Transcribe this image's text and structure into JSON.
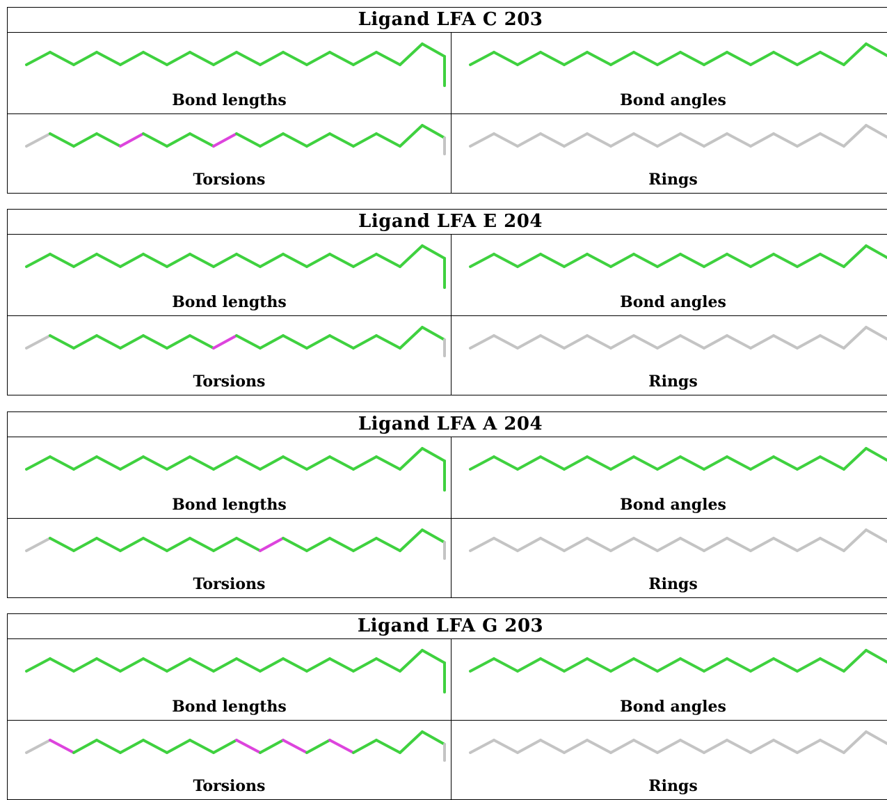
{
  "colors": {
    "green": "#3fd13f",
    "magenta": "#dd44dd",
    "gray": "#c4c4c4"
  },
  "panels": [
    {
      "title": "Ligand LFA C 203",
      "cells": [
        {
          "label": "Bond lengths",
          "highlight_bonds": []
        },
        {
          "label": "Bond angles",
          "highlight_bonds": []
        },
        {
          "label": "Torsions",
          "highlight_bonds": [
            4,
            8
          ]
        },
        {
          "label": "Rings",
          "highlight_bonds": []
        }
      ]
    },
    {
      "title": "Ligand LFA E 204",
      "cells": [
        {
          "label": "Bond lengths",
          "highlight_bonds": []
        },
        {
          "label": "Bond angles",
          "highlight_bonds": []
        },
        {
          "label": "Torsions",
          "highlight_bonds": [
            8
          ]
        },
        {
          "label": "Rings",
          "highlight_bonds": []
        }
      ]
    },
    {
      "title": "Ligand LFA A 204",
      "cells": [
        {
          "label": "Bond lengths",
          "highlight_bonds": []
        },
        {
          "label": "Bond angles",
          "highlight_bonds": []
        },
        {
          "label": "Torsions",
          "highlight_bonds": [
            10
          ]
        },
        {
          "label": "Rings",
          "highlight_bonds": []
        }
      ]
    },
    {
      "title": "Ligand LFA G 203",
      "cells": [
        {
          "label": "Bond lengths",
          "highlight_bonds": []
        },
        {
          "label": "Bond angles",
          "highlight_bonds": []
        },
        {
          "label": "Torsions",
          "highlight_bonds": [
            1,
            9,
            11,
            13
          ]
        },
        {
          "label": "Rings",
          "highlight_bonds": []
        }
      ]
    }
  ]
}
